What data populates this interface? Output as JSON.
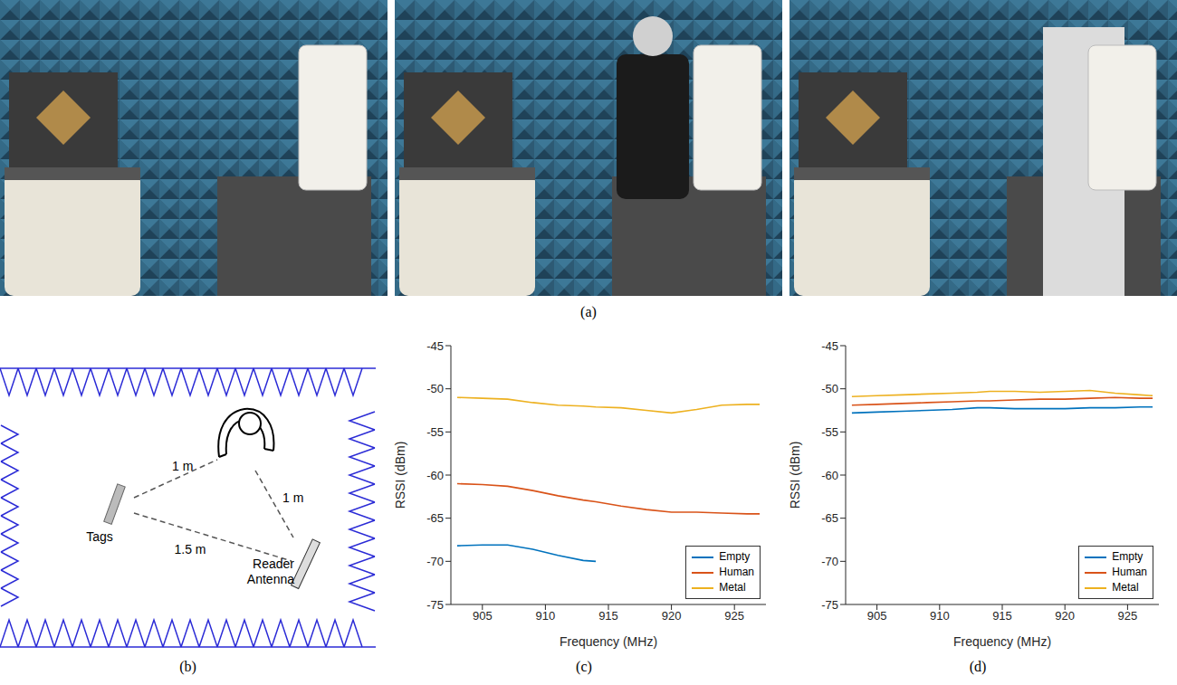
{
  "figure": {
    "photos": {
      "caption": "(a)"
    },
    "diagram": {
      "caption": "(b)",
      "labels": {
        "tags": "Tags",
        "reader": "Reader Antenna",
        "tags_to_human": "1 m",
        "human_to_reader": "1 m",
        "tags_to_reader": "1.5 m"
      }
    }
  },
  "chart_data": [
    {
      "type": "line",
      "caption": "(c)",
      "x_label": "Frequency (MHz)",
      "y_label": "RSSI (dBm)",
      "x": [
        903,
        905,
        907,
        909,
        911,
        913,
        914,
        916,
        918,
        920,
        922,
        924,
        926,
        927
      ],
      "xlim": [
        902.5,
        927.5
      ],
      "xticks": [
        905,
        910,
        915,
        920,
        925
      ],
      "ylim": [
        -75,
        -45
      ],
      "yticks": [
        -75,
        -70,
        -65,
        -60,
        -55,
        -50,
        -45
      ],
      "grid": false,
      "legend": "lower right",
      "series": [
        {
          "name": "Empty",
          "color": "#0072BD",
          "values": [
            -68.2,
            -68.1,
            -68.1,
            -68.6,
            -69.3,
            -69.9,
            -70.0,
            null,
            null,
            null,
            null,
            null,
            null,
            null
          ]
        },
        {
          "name": "Human",
          "color": "#D95319",
          "values": [
            -61.0,
            -61.1,
            -61.3,
            -61.8,
            -62.4,
            -62.9,
            -63.1,
            -63.6,
            -64.0,
            -64.3,
            -64.3,
            -64.4,
            -64.5,
            -64.5
          ]
        },
        {
          "name": "Metal",
          "color": "#EDB120",
          "values": [
            -51.0,
            -51.1,
            -51.2,
            -51.6,
            -51.9,
            -52.0,
            -52.1,
            -52.2,
            -52.5,
            -52.8,
            -52.4,
            -51.9,
            -51.8,
            -51.8
          ]
        }
      ]
    },
    {
      "type": "line",
      "caption": "(d)",
      "x_label": "Frequency (MHz)",
      "y_label": "RSSI (dBm)",
      "x": [
        903,
        905,
        907,
        909,
        911,
        913,
        914,
        916,
        918,
        920,
        922,
        924,
        926,
        927
      ],
      "xlim": [
        902.5,
        927.5
      ],
      "xticks": [
        905,
        910,
        915,
        920,
        925
      ],
      "ylim": [
        -75,
        -45
      ],
      "yticks": [
        -75,
        -70,
        -65,
        -60,
        -55,
        -50,
        -45
      ],
      "grid": false,
      "legend": "lower right",
      "series": [
        {
          "name": "Empty",
          "color": "#0072BD",
          "values": [
            -52.8,
            -52.7,
            -52.6,
            -52.5,
            -52.4,
            -52.2,
            -52.2,
            -52.3,
            -52.3,
            -52.3,
            -52.2,
            -52.2,
            -52.1,
            -52.1
          ]
        },
        {
          "name": "Human",
          "color": "#D95319",
          "values": [
            -51.9,
            -51.8,
            -51.7,
            -51.6,
            -51.5,
            -51.4,
            -51.4,
            -51.3,
            -51.2,
            -51.2,
            -51.1,
            -51.0,
            -51.1,
            -51.1
          ]
        },
        {
          "name": "Metal",
          "color": "#EDB120",
          "values": [
            -50.9,
            -50.8,
            -50.7,
            -50.6,
            -50.5,
            -50.4,
            -50.3,
            -50.3,
            -50.4,
            -50.3,
            -50.2,
            -50.5,
            -50.7,
            -50.8
          ]
        }
      ]
    }
  ]
}
